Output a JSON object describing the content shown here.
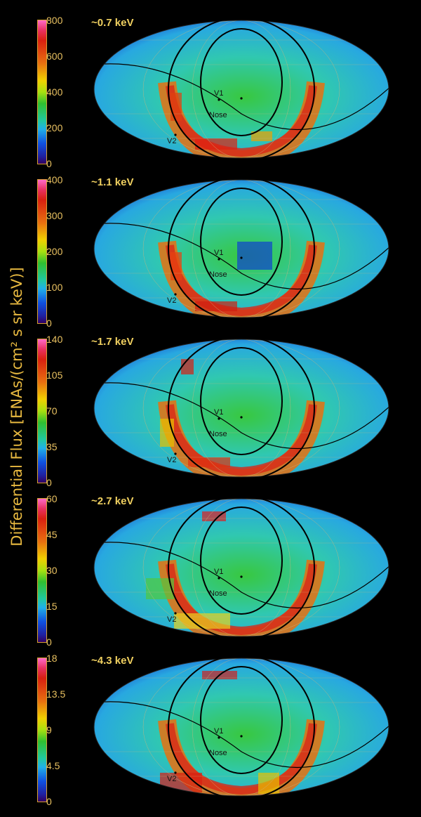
{
  "axis_label": "Differential Flux [ENAs/(cm² s sr keV)]",
  "panels": [
    {
      "energy": "~0.7 keV",
      "ticks": [
        "800",
        "600",
        "400",
        "200",
        "0"
      ]
    },
    {
      "energy": "~1.1 keV",
      "ticks": [
        "400",
        "300",
        "200",
        "100",
        "0"
      ]
    },
    {
      "energy": "~1.7 keV",
      "ticks": [
        "140",
        "105",
        "70",
        "35",
        "0"
      ]
    },
    {
      "energy": "~2.7 keV",
      "ticks": [
        "60",
        "45",
        "30",
        "15",
        "0"
      ]
    },
    {
      "energy": "~4.3 keV",
      "ticks": [
        "18",
        "13.5",
        "9",
        "4.5",
        "0"
      ]
    }
  ],
  "map_labels": {
    "v1": "V1",
    "v2": "V2",
    "nose": "Nose"
  },
  "colors": {
    "label": "#e8b940",
    "ribbon": "#d83020",
    "background_flux": "#28c0d8"
  }
}
